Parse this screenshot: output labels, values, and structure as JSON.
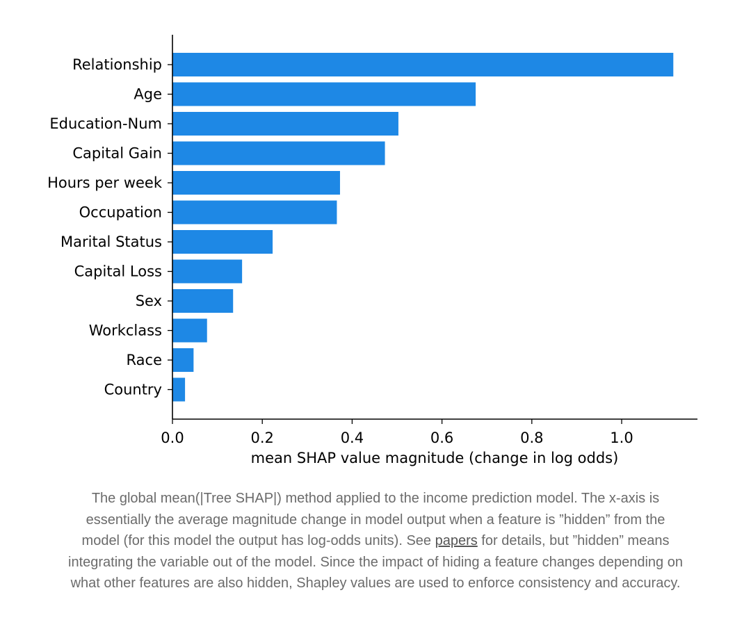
{
  "chart_data": {
    "type": "bar",
    "orientation": "horizontal",
    "categories": [
      "Relationship",
      "Age",
      "Education-Num",
      "Capital Gain",
      "Hours per week",
      "Occupation",
      "Marital Status",
      "Capital Loss",
      "Sex",
      "Workclass",
      "Race",
      "Country"
    ],
    "values": [
      1.115,
      0.675,
      0.503,
      0.473,
      0.373,
      0.366,
      0.223,
      0.155,
      0.135,
      0.077,
      0.047,
      0.028
    ],
    "xlabel": "mean SHAP value magnitude (change in log odds)",
    "ylabel": "",
    "xlim": [
      0,
      1.17
    ],
    "xticks": [
      "0.0",
      "0.2",
      "0.4",
      "0.6",
      "0.8",
      "1.0"
    ],
    "bar_color": "#1e88e5",
    "grid": false
  },
  "caption": {
    "line1": "The global mean(|Tree SHAP|) method applied to the income prediction model. The x-axis is",
    "line2": "essentially the average magnitude change in model output when a feature is ”hidden” from the",
    "line3_before": "model (for this model the output has log-odds units). See ",
    "line3_link": "papers",
    "line3_after": " for details, but ”hidden” means",
    "line4": "integrating the variable out of the model. Since the impact of hiding a feature changes depending on",
    "line5": "what other features are also hidden, Shapley values are used to enforce consistency and accuracy."
  }
}
